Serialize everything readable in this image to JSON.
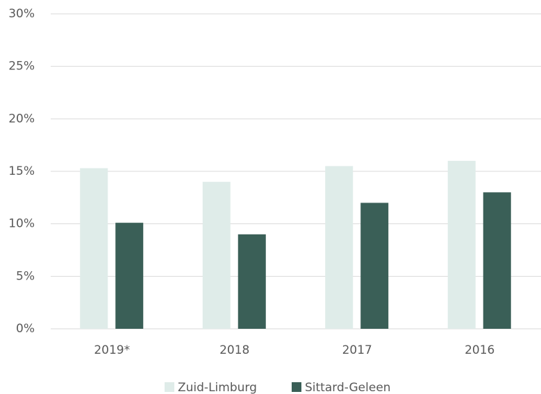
{
  "chart_data": {
    "type": "bar",
    "categories": [
      "2019*",
      "2018",
      "2017",
      "2016"
    ],
    "series": [
      {
        "name": "Zuid-Limburg",
        "color": "#dfece9",
        "values": [
          15.3,
          14,
          15.5,
          16
        ]
      },
      {
        "name": "Sittard-Geleen",
        "color": "#3a5f57",
        "values": [
          10.1,
          9,
          12,
          13
        ]
      }
    ],
    "ylim": [
      0,
      30
    ],
    "yticks": [
      {
        "value": 0,
        "label": "0%"
      },
      {
        "value": 5,
        "label": "5%"
      },
      {
        "value": 10,
        "label": "10%"
      },
      {
        "value": 15,
        "label": "15%"
      },
      {
        "value": 20,
        "label": "20%"
      },
      {
        "value": 25,
        "label": "25%"
      },
      {
        "value": 30,
        "label": "30%"
      }
    ],
    "grid": true,
    "legend": "bottom"
  }
}
